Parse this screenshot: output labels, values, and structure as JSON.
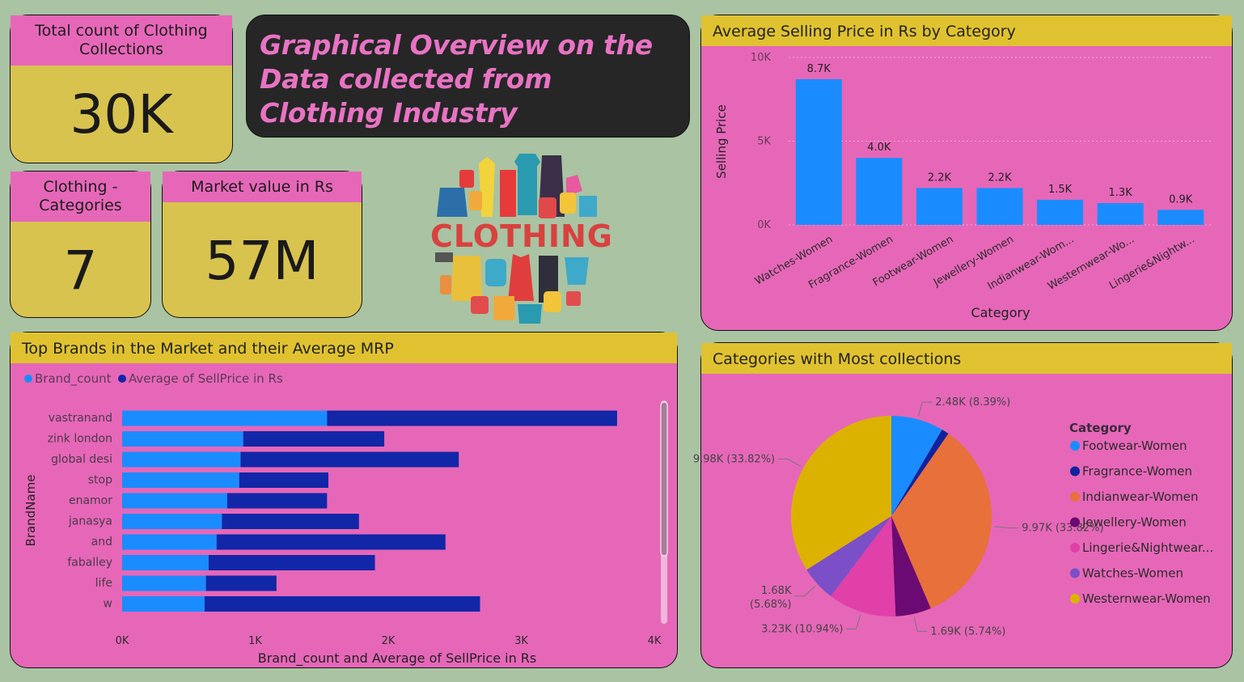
{
  "kpis": {
    "total_count": {
      "label": "Total count of Clothing Collections",
      "value": "30K"
    },
    "categories": {
      "label": "Clothing - Categories",
      "value": "7"
    },
    "market_value": {
      "label": "Market value in Rs",
      "value": "57M"
    }
  },
  "title": "Graphical Overview on the Data collected from Clothing Industry",
  "logo_text": "CLOTHING",
  "colors": {
    "background": "#a9c3a3",
    "panel": "#e667b8",
    "header": "#e0c230",
    "kpi": "#d9c34f",
    "bar_light": "#1a8cff",
    "bar_dark": "#1226a8"
  },
  "chart_data": [
    {
      "type": "bar",
      "title": "Average Selling Price in Rs by Category",
      "xlabel": "Category",
      "ylabel": "Selling Price",
      "categories": [
        "Watches-Women",
        "Fragrance-Women",
        "Footwear-Women",
        "Jewellery-Women",
        "Indianwear-Wom...",
        "Westernwear-Wo...",
        "Lingerie&Nightw..."
      ],
      "values": [
        8700,
        4000,
        2200,
        2200,
        1500,
        1300,
        900
      ],
      "data_labels": [
        "8.7K",
        "4.0K",
        "2.2K",
        "2.2K",
        "1.5K",
        "1.3K",
        "0.9K"
      ],
      "ylim": [
        0,
        10000
      ],
      "y_ticks": [
        "0K",
        "5K",
        "10K"
      ],
      "grid": true
    },
    {
      "type": "bar",
      "orientation": "horizontal",
      "stacked": true,
      "title": "Top Brands in the Market and their Average MRP",
      "xlabel": "Brand_count and Average of SellPrice in Rs",
      "ylabel": "BrandName",
      "categories": [
        "vastranand",
        "zink london",
        "global desi",
        "stop",
        "enamor",
        "janasya",
        "and",
        "faballey",
        "life",
        "w"
      ],
      "series": [
        {
          "name": "Brand_count",
          "values": [
            1540,
            910,
            890,
            880,
            790,
            750,
            710,
            650,
            630,
            620
          ]
        },
        {
          "name": "Average of SellPrice in Rs",
          "values": [
            2180,
            1060,
            1640,
            670,
            750,
            1030,
            1720,
            1250,
            530,
            2070
          ]
        }
      ],
      "xlim": [
        0,
        4000
      ],
      "x_ticks": [
        "0K",
        "1K",
        "2K",
        "3K",
        "4K"
      ],
      "legend": "top-left"
    },
    {
      "type": "pie",
      "title": "Categories with Most collections",
      "legend_title": "Category",
      "legend": "right",
      "slices": [
        {
          "name": "Footwear-Women",
          "value": 2480,
          "label": "2.48K (8.39%)",
          "color": "#1a8cff"
        },
        {
          "name": "Fragrance-Women",
          "value": 350,
          "label": "",
          "color": "#12239a"
        },
        {
          "name": "Indianwear-Women",
          "value": 9970,
          "label": "9.97K (33.82%)",
          "color": "#e8703a"
        },
        {
          "name": "Jewellery-Women",
          "value": 1690,
          "label": "1.69K (5.74%)",
          "color": "#6b0a72"
        },
        {
          "name": "Lingerie&Nightwear...",
          "value": 3230,
          "label": "3.23K (10.94%)",
          "color": "#e040a8"
        },
        {
          "name": "Watches-Women",
          "value": 1680,
          "label": "1.68K (5.68%)",
          "color": "#7a4fc8"
        },
        {
          "name": "Westernwear-Women",
          "value": 9980,
          "label": "9.98K (33.82%)",
          "color": "#dcb200"
        }
      ]
    }
  ]
}
